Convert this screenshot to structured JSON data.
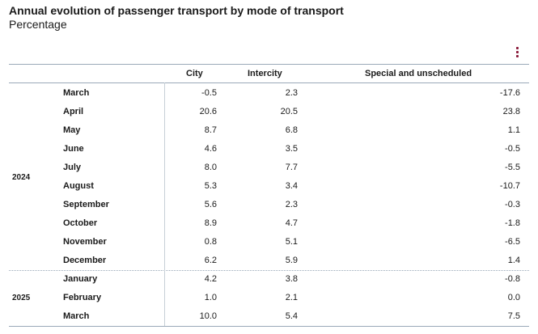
{
  "title": "Annual evolution of passenger transport by mode of transport",
  "subtitle": "Percentage",
  "chart_data": {
    "type": "table",
    "title": "Annual evolution of passenger transport by mode of transport",
    "subtitle": "Percentage",
    "columns": [
      "City",
      "Intercity",
      "Special and unscheduled"
    ],
    "groups": [
      {
        "year": "2024",
        "rows": [
          {
            "month": "March",
            "values": [
              "-0.5",
              "2.3",
              "-17.6"
            ]
          },
          {
            "month": "April",
            "values": [
              "20.6",
              "20.5",
              "23.8"
            ]
          },
          {
            "month": "May",
            "values": [
              "8.7",
              "6.8",
              "1.1"
            ]
          },
          {
            "month": "June",
            "values": [
              "4.6",
              "3.5",
              "-0.5"
            ]
          },
          {
            "month": "July",
            "values": [
              "8.0",
              "7.7",
              "-5.5"
            ]
          },
          {
            "month": "August",
            "values": [
              "5.3",
              "3.4",
              "-10.7"
            ]
          },
          {
            "month": "September",
            "values": [
              "5.6",
              "2.3",
              "-0.3"
            ]
          },
          {
            "month": "October",
            "values": [
              "8.9",
              "4.7",
              "-1.8"
            ]
          },
          {
            "month": "November",
            "values": [
              "0.8",
              "5.1",
              "-6.5"
            ]
          },
          {
            "month": "December",
            "values": [
              "6.2",
              "5.9",
              "1.4"
            ]
          }
        ]
      },
      {
        "year": "2025",
        "rows": [
          {
            "month": "January",
            "values": [
              "4.2",
              "3.8",
              "-0.8"
            ]
          },
          {
            "month": "February",
            "values": [
              "1.0",
              "2.1",
              "0.0"
            ]
          },
          {
            "month": "March",
            "values": [
              "10.0",
              "5.4",
              "7.5"
            ]
          }
        ]
      }
    ]
  }
}
